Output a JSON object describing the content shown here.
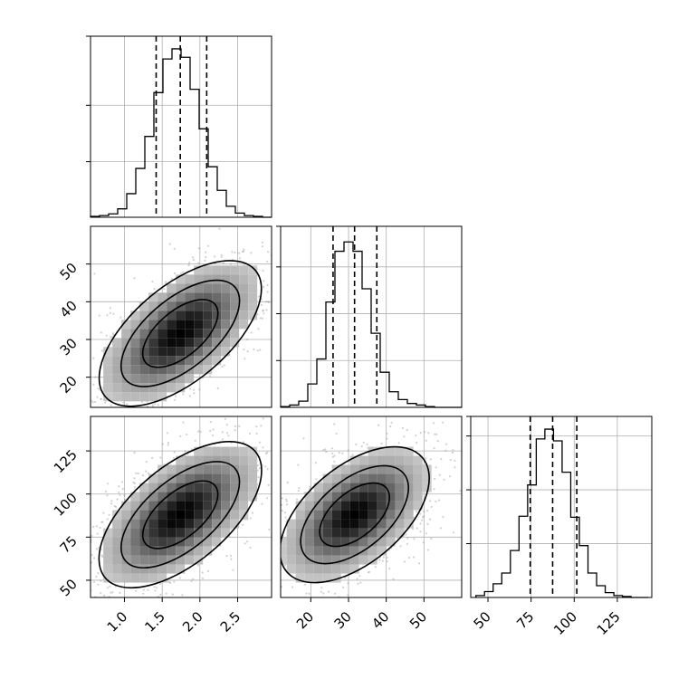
{
  "chart_data": {
    "type": "corner",
    "grid": true,
    "parameters": [
      {
        "range": [
          0.55,
          2.95
        ],
        "ticks": [
          1.0,
          1.5,
          2.0,
          2.5
        ],
        "tick_labels": [
          "1.0",
          "1.5",
          "2.0",
          "2.5"
        ],
        "histogram": {
          "bin_start": 0.55,
          "bin_width": 0.12,
          "counts": [
            1,
            2,
            4,
            10,
            28,
            58,
            96,
            148,
            188,
            200,
            190,
            152,
            105,
            60,
            32,
            13,
            5,
            2,
            1,
            0
          ],
          "y_max": 215,
          "y_ticks": [
            66,
            133
          ]
        },
        "quantiles": [
          1.42,
          1.74,
          2.09
        ]
      },
      {
        "range": [
          12,
          60
        ],
        "ticks": [
          20,
          30,
          40,
          50
        ],
        "tick_labels": [
          "20",
          "30",
          "40",
          "50"
        ],
        "histogram": {
          "bin_start": 12,
          "bin_width": 2.4,
          "counts": [
            1,
            3,
            8,
            30,
            62,
            135,
            200,
            212,
            200,
            152,
            95,
            45,
            20,
            10,
            5,
            3,
            1,
            0,
            0,
            0
          ],
          "y_max": 232,
          "y_ticks": [
            60,
            120,
            180
          ]
        },
        "quantiles": [
          25.9,
          31.6,
          37.5
        ]
      },
      {
        "range": [
          40,
          145
        ],
        "ticks": [
          50,
          75,
          100,
          125
        ],
        "tick_labels": [
          "50",
          "75",
          "100",
          "125"
        ],
        "histogram": {
          "bin_start": 43,
          "bin_width": 5,
          "counts": [
            2,
            6,
            14,
            25,
            48,
            83,
            115,
            162,
            172,
            160,
            128,
            82,
            53,
            25,
            12,
            5,
            2,
            1,
            0,
            0
          ],
          "y_max": 185,
          "y_ticks": [
            55,
            110,
            165
          ]
        },
        "quantiles": [
          74.5,
          87.5,
          101.5
        ]
      }
    ],
    "pairs": [
      {
        "x_param": 0,
        "y_param": 1,
        "center": [
          1.74,
          31.6
        ],
        "contours": [
          {
            "a": 0.6,
            "b": 6.0,
            "theta_deg": 40
          },
          {
            "a": 0.95,
            "b": 9.2,
            "theta_deg": 40
          },
          {
            "a": 1.3,
            "b": 12.6,
            "theta_deg": 40
          }
        ]
      },
      {
        "x_param": 0,
        "y_param": 2,
        "center": [
          1.74,
          88
        ],
        "contours": [
          {
            "a": 0.6,
            "b": 13,
            "theta_deg": 40
          },
          {
            "a": 0.95,
            "b": 20,
            "theta_deg": 40
          },
          {
            "a": 1.3,
            "b": 28,
            "theta_deg": 40
          }
        ]
      },
      {
        "x_param": 1,
        "y_param": 2,
        "center": [
          31.6,
          88
        ],
        "contours": [
          {
            "a": 11,
            "b": 13,
            "theta_deg": 40
          },
          {
            "a": 17,
            "b": 20,
            "theta_deg": 40
          },
          {
            "a": 23.5,
            "b": 28,
            "theta_deg": 40
          }
        ]
      }
    ]
  }
}
